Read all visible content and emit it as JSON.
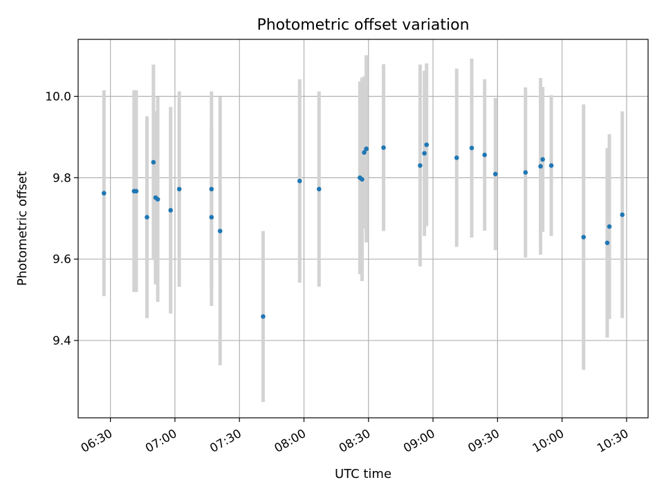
{
  "chart_data": {
    "type": "scatter",
    "title": "Photometric offset variation",
    "xlabel": "UTC time",
    "ylabel": "Photometric offset",
    "xlim": [
      "06:15",
      "10:40"
    ],
    "ylim": [
      9.21,
      10.14
    ],
    "grid": true,
    "x_tick_labels": [
      "06:30",
      "07:00",
      "07:30",
      "08:00",
      "08:30",
      "09:00",
      "09:30",
      "10:00",
      "10:30"
    ],
    "y_tick_labels": [
      "9.4",
      "9.6",
      "9.8",
      "10.0"
    ],
    "colors": {
      "points": "#1f77b4",
      "errorbars": "#d3d3d3",
      "grid": "#b0b0b0"
    },
    "series": [
      {
        "x": [
          "06:27",
          "06:41",
          "06:42",
          "06:47",
          "06:50",
          "06:51",
          "06:52",
          "06:58",
          "07:02",
          "07:17",
          "07:17",
          "07:21",
          "07:41",
          "07:58",
          "08:07",
          "08:26",
          "08:27",
          "08:28",
          "08:29",
          "08:29",
          "08:37",
          "08:54",
          "08:56",
          "08:57",
          "09:11",
          "09:18",
          "09:24",
          "09:29",
          "09:43",
          "09:50",
          "09:51",
          "09:55",
          "10:10",
          "10:21",
          "10:22",
          "10:28"
        ],
        "y": [
          9.762,
          9.767,
          9.767,
          9.703,
          9.838,
          9.751,
          9.747,
          9.72,
          9.772,
          9.772,
          9.703,
          9.669,
          9.459,
          9.792,
          9.772,
          9.8,
          9.796,
          9.862,
          9.871,
          9.871,
          9.874,
          9.83,
          9.86,
          9.881,
          9.849,
          9.873,
          9.856,
          9.809,
          9.813,
          9.828,
          9.845,
          9.83,
          9.654,
          9.64,
          9.68,
          9.709
        ],
        "yerr": [
          0.253,
          0.248,
          0.248,
          0.248,
          0.24,
          0.213,
          0.252,
          0.254,
          0.24,
          0.24,
          0.218,
          0.33,
          0.21,
          0.25,
          0.24,
          0.237,
          0.25,
          0.187,
          0.228,
          0.23,
          0.205,
          0.248,
          0.203,
          0.2,
          0.219,
          0.22,
          0.186,
          0.187,
          0.209,
          0.217,
          0.178,
          0.173,
          0.326,
          0.233,
          0.227,
          0.254
        ]
      }
    ]
  }
}
